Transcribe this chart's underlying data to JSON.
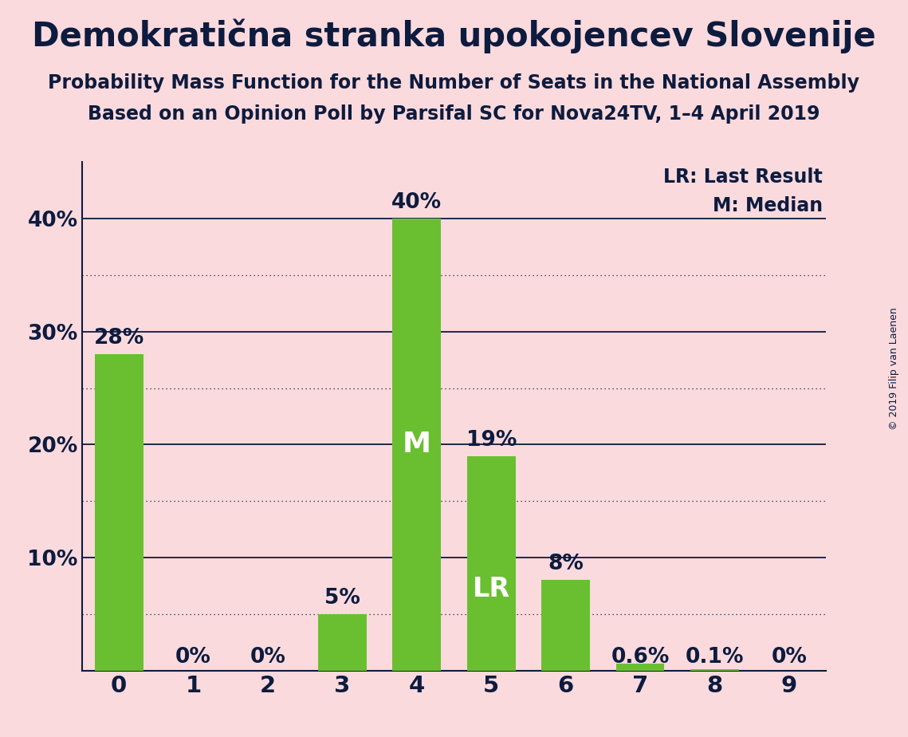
{
  "title": "Demokratična stranka upokojencev Slovenije",
  "subtitle1": "Probability Mass Function for the Number of Seats in the National Assembly",
  "subtitle2": "Based on an Opinion Poll by Parsifal SC for Nova24TV, 1–4 April 2019",
  "watermark": "© 2019 Filip van Laenen",
  "categories": [
    0,
    1,
    2,
    3,
    4,
    5,
    6,
    7,
    8,
    9
  ],
  "values": [
    0.28,
    0.0,
    0.0,
    0.05,
    0.4,
    0.19,
    0.08,
    0.006,
    0.001,
    0.0
  ],
  "labels": [
    "28%",
    "0%",
    "0%",
    "5%",
    "40%",
    "19%",
    "8%",
    "0.6%",
    "0.1%",
    "0%"
  ],
  "bar_color": "#6abf30",
  "background_color": "#fadadd",
  "text_color": "#0d1b3e",
  "median_bar": 4,
  "lr_bar": 5,
  "ylim": [
    0,
    0.45
  ],
  "yticks": [
    0.0,
    0.1,
    0.2,
    0.3,
    0.4
  ],
  "ytick_labels": [
    "",
    "10%",
    "20%",
    "30%",
    "40%"
  ],
  "solid_gridlines": [
    0.1,
    0.2,
    0.3,
    0.4
  ],
  "dotted_gridlines": [
    0.05,
    0.15,
    0.25,
    0.35
  ],
  "title_fontsize": 30,
  "subtitle_fontsize": 17,
  "label_fontsize": 19,
  "tick_fontsize": 19,
  "annotation_fontsize": 26,
  "legend_fontsize": 17,
  "watermark_fontsize": 9,
  "bar_width": 0.65
}
